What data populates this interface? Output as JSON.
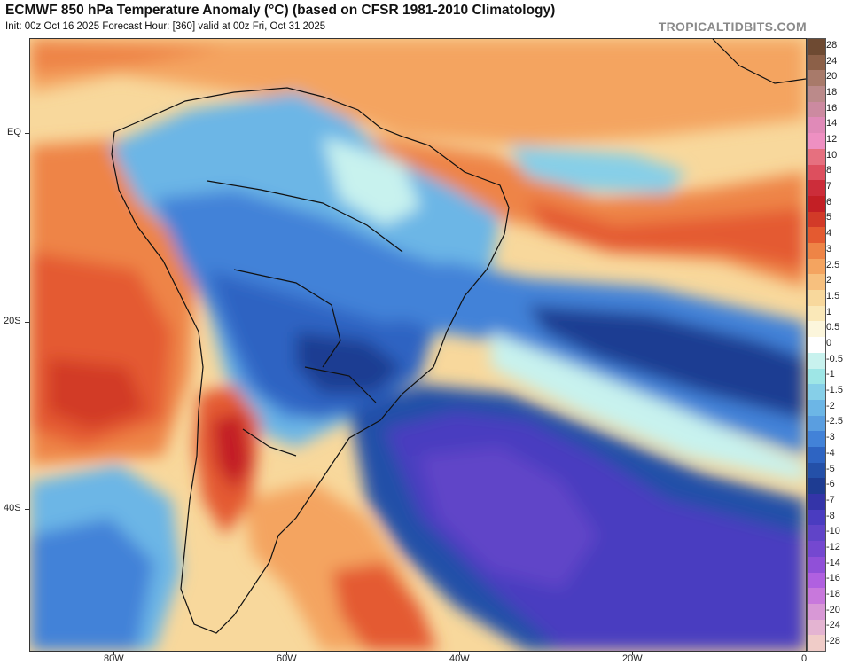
{
  "header": {
    "title": "ECMWF 850 hPa Temperature Anomaly (°C) (based on CFSR 1981-2010 Climatology)",
    "subtitle": "Init: 00z Oct 16 2025   Forecast Hour: [360]   valid at 00z Fri, Oct 31 2025",
    "credit": "TROPICALTIDBITS.COM"
  },
  "axes": {
    "lat_labels": [
      "EQ",
      "20S",
      "40S"
    ],
    "lon_labels": [
      "80W",
      "60W",
      "40W",
      "20W",
      "0"
    ]
  },
  "colorbar": {
    "labels": [
      "28",
      "24",
      "20",
      "18",
      "16",
      "14",
      "12",
      "10",
      "8",
      "7",
      "6",
      "5",
      "4",
      "3",
      "2.5",
      "2",
      "1.5",
      "1",
      "0.5",
      "0",
      "-0.5",
      "-1",
      "-1.5",
      "-2",
      "-2.5",
      "-3",
      "-4",
      "-5",
      "-6",
      "-7",
      "-8",
      "-10",
      "-12",
      "-14",
      "-16",
      "-18",
      "-20",
      "-24",
      "-28"
    ],
    "colors": [
      "#6e4a32",
      "#8c6048",
      "#a87a6a",
      "#bb8a8a",
      "#cc8aa0",
      "#e08ab8",
      "#ee90c2",
      "#e6707f",
      "#dd4f5e",
      "#cc2d3a",
      "#c31f25",
      "#d23a28",
      "#e45a30",
      "#ee8446",
      "#f4a460",
      "#f7c07e",
      "#f8d89c",
      "#fae8b8",
      "#fcf6dc",
      "#ffffff",
      "#c8f2ee",
      "#9ee6e6",
      "#86cfe8",
      "#6cb6e6",
      "#5a9ee0",
      "#4282d8",
      "#2e64c2",
      "#2450a8",
      "#1e3c92",
      "#3434a8",
      "#4a3cc0",
      "#6044c8",
      "#7448d0",
      "#9050d8",
      "#b060e0",
      "#c878dc",
      "#d898d6",
      "#e4b4d2",
      "#f0ccc8"
    ]
  }
}
